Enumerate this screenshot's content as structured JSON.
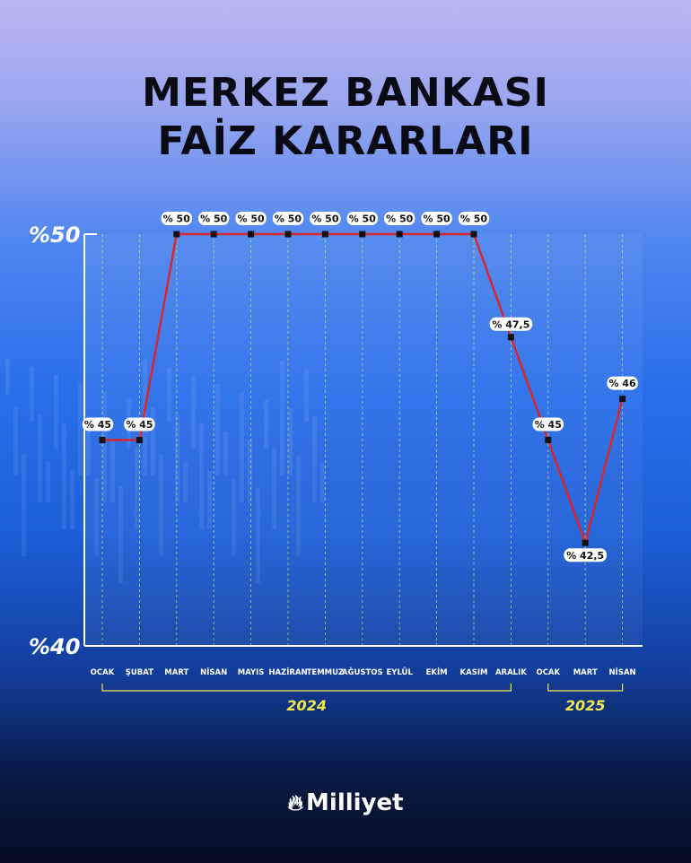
{
  "header": {
    "title_line1": "MERKEZ BANKASI",
    "title_line2": "FAİZ KARARLARI"
  },
  "logo": {
    "text": "Milliyet",
    "icon": "flame-icon"
  },
  "colors": {
    "line": "#d8262e",
    "marker": "#111111",
    "label_bg": "#ffffff",
    "year": "#f1e84a"
  },
  "chart_data": {
    "type": "line",
    "title": "",
    "x": [
      "OCAK",
      "ŞUBAT",
      "MART",
      "NİSAN",
      "MAYIS",
      "HAZİRAN",
      "TEMMUZ",
      "AĞUSTOS",
      "EYLÜL",
      "EKİM",
      "KASIM",
      "ARALIK",
      "OCAK",
      "MART",
      "NİSAN"
    ],
    "series": [
      {
        "values": [
          45,
          45,
          50,
          50,
          50,
          50,
          50,
          50,
          50,
          50,
          50,
          47.5,
          45,
          42.5,
          46
        ]
      }
    ],
    "data_labels": [
      "% 45",
      "% 45",
      "% 50",
      "% 50",
      "% 50",
      "% 50",
      "% 50",
      "% 50",
      "% 50",
      "% 50",
      "% 50",
      "% 47,5",
      "% 45",
      "% 42,5",
      "% 46"
    ],
    "y_tick_labels": [
      "%50",
      "%40"
    ],
    "y_ticks": [
      50,
      40
    ],
    "ylim": [
      40,
      50
    ],
    "year_groups": [
      {
        "label": "2024",
        "from": 0,
        "to": 11
      },
      {
        "label": "2025",
        "from": 12,
        "to": 14
      }
    ],
    "grid": "dashed vertical"
  }
}
